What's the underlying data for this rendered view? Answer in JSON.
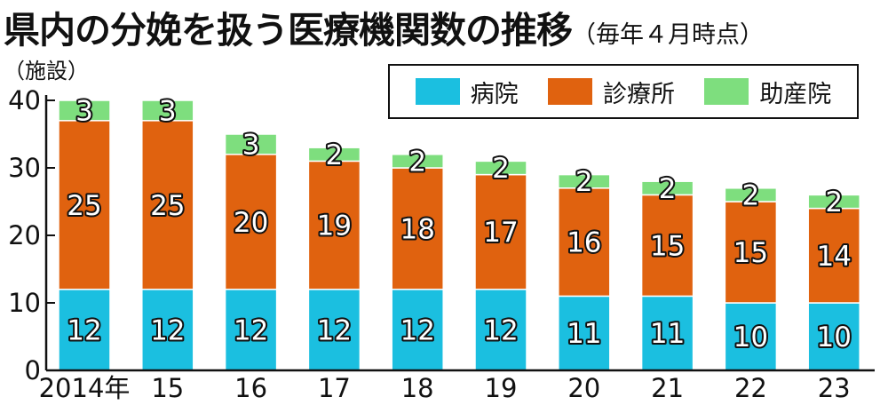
{
  "title": {
    "main": "県内の分娩を扱う医療機関数の推移",
    "sub": "（毎年４月時点）"
  },
  "unit_label": "（施設）",
  "chart_data": {
    "type": "bar",
    "stacked": true,
    "categories": [
      "2014年",
      "15",
      "16",
      "17",
      "18",
      "19",
      "20",
      "21",
      "22",
      "23"
    ],
    "series": [
      {
        "name": "病院",
        "color": "#1bbfe0",
        "values": [
          12,
          12,
          12,
          12,
          12,
          12,
          11,
          11,
          10,
          10
        ]
      },
      {
        "name": "診療所",
        "color": "#e0620f",
        "values": [
          25,
          25,
          20,
          19,
          18,
          17,
          16,
          15,
          15,
          14
        ]
      },
      {
        "name": "助産院",
        "color": "#7ede7e",
        "values": [
          3,
          3,
          3,
          2,
          2,
          2,
          2,
          2,
          2,
          2
        ]
      }
    ],
    "ylim": [
      0,
      40
    ],
    "yticks": [
      0,
      10,
      20,
      30,
      40
    ],
    "legend_position": "top-right",
    "grid": false
  }
}
